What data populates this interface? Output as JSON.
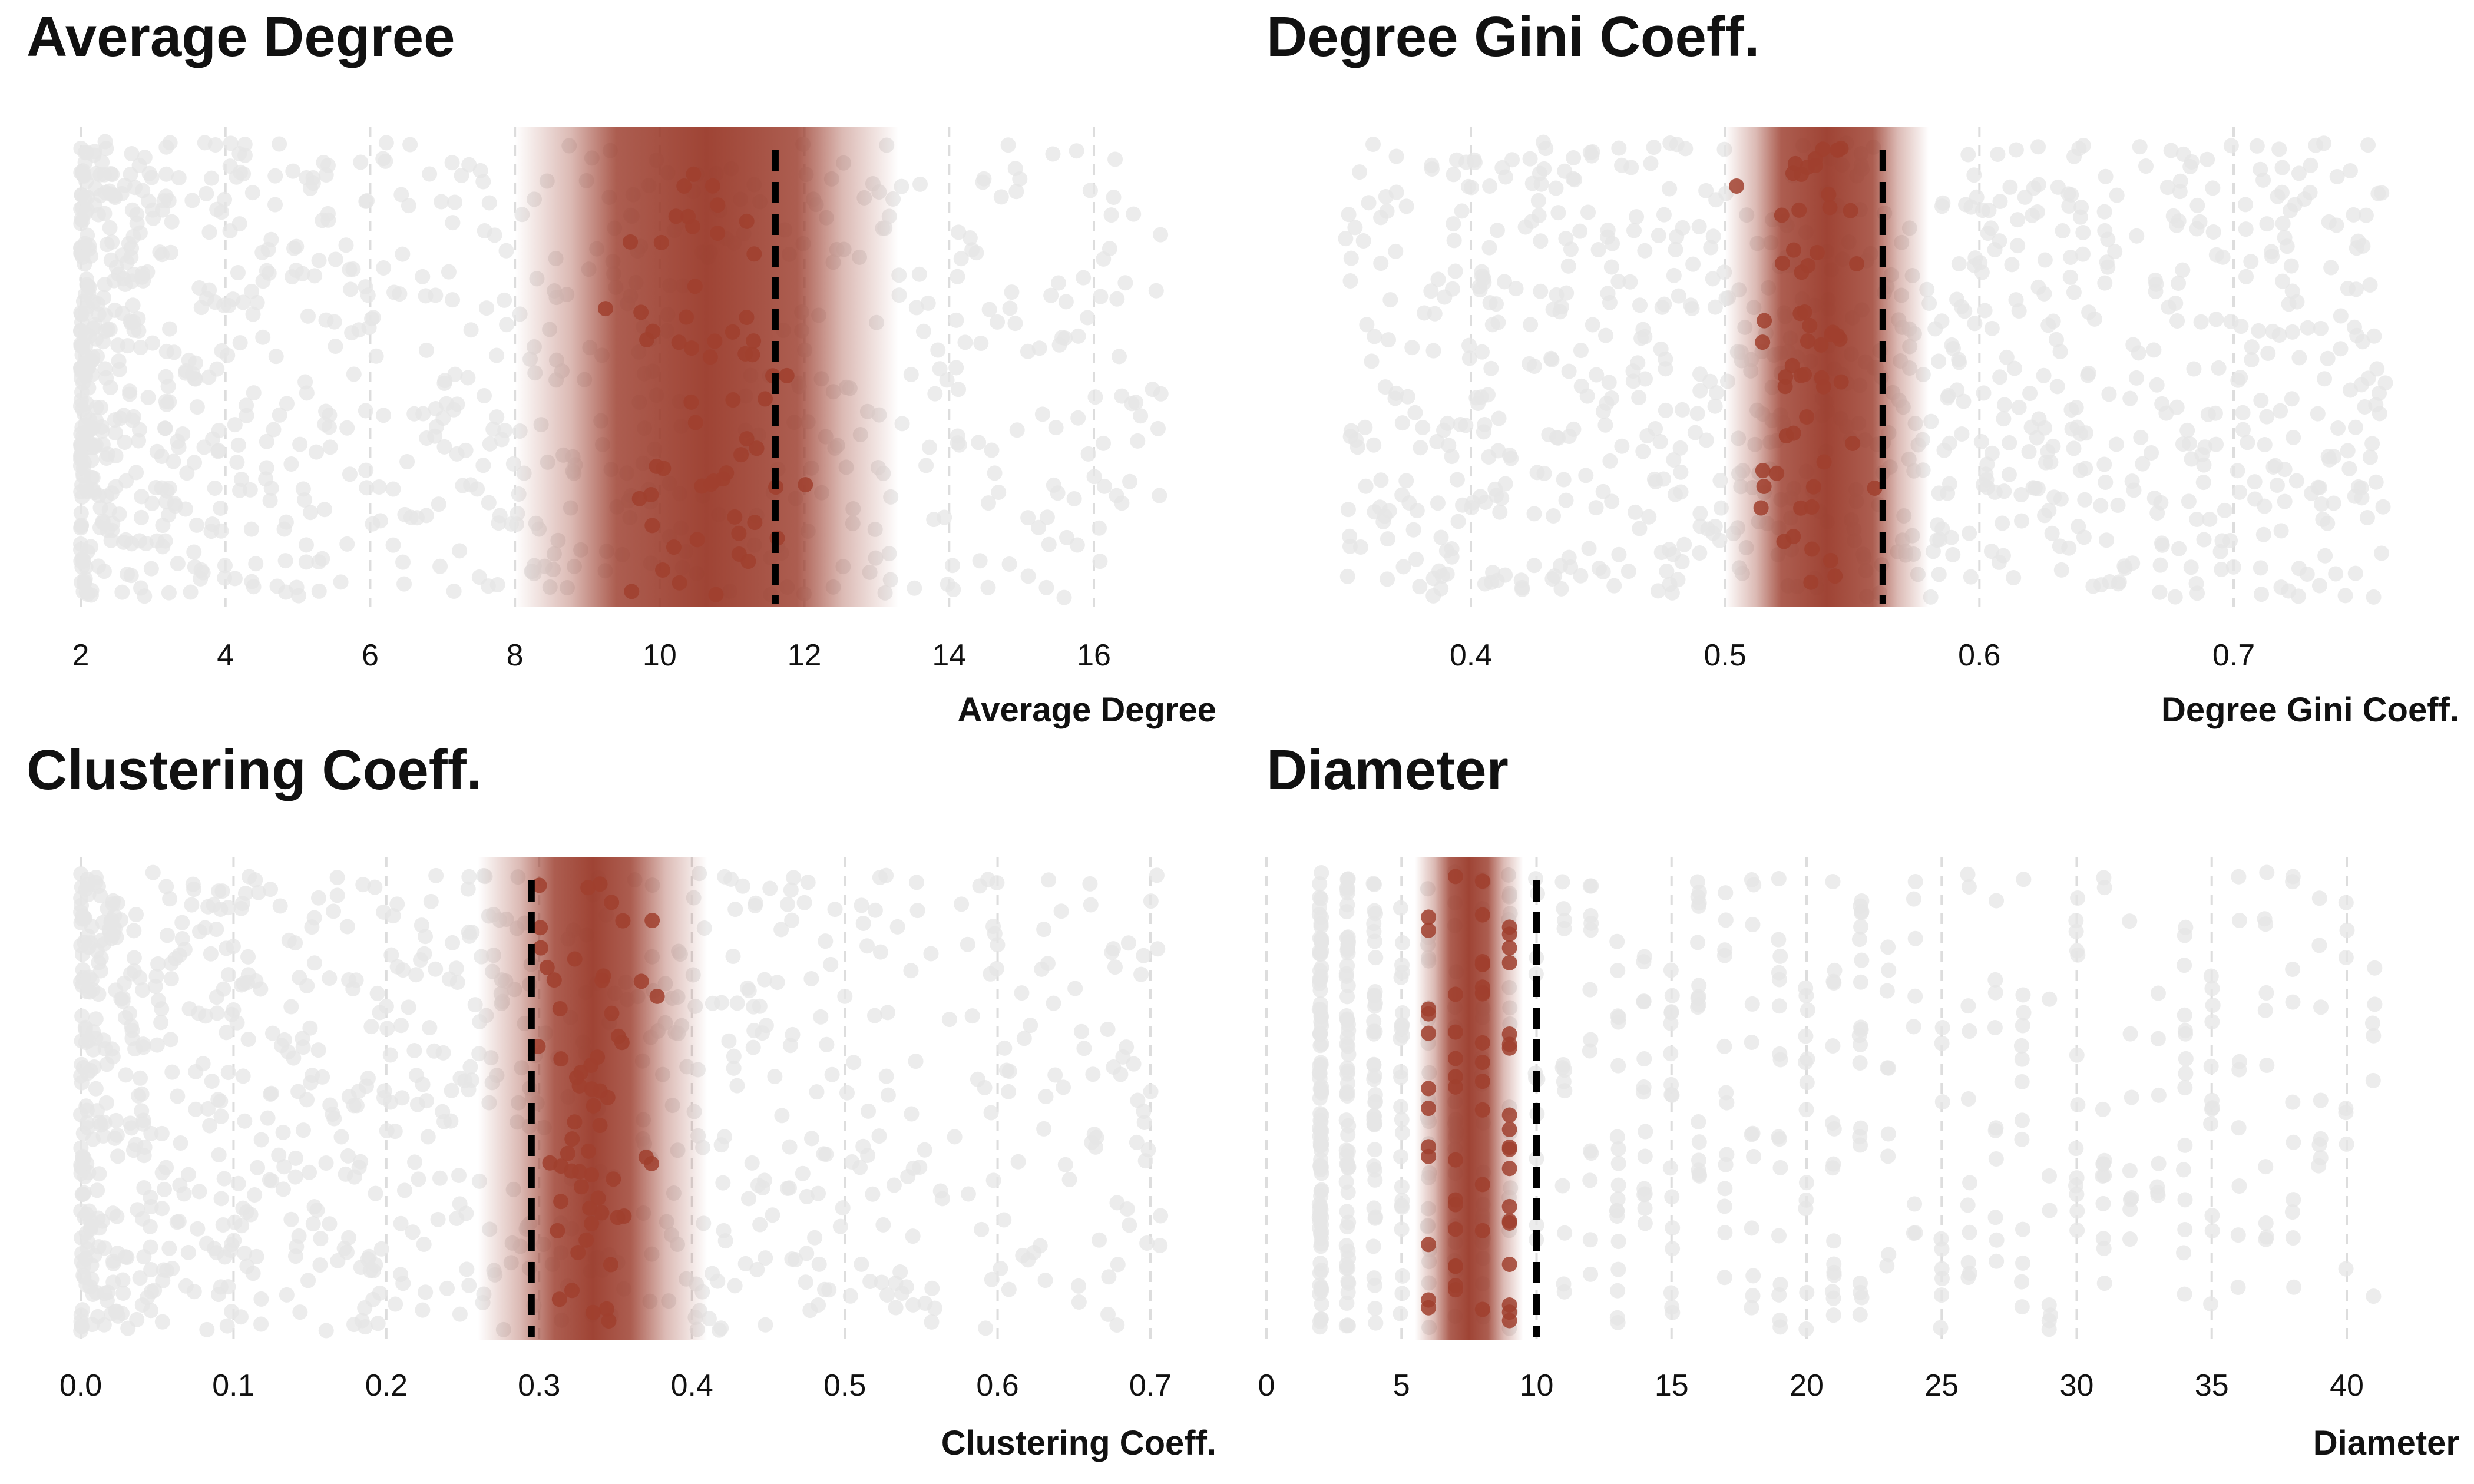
{
  "colors": {
    "accent": "#9a3a2a",
    "background_points": "#e6e6e6",
    "reference_line": "#000000",
    "grid": "#dddddd"
  },
  "chart_data": [
    {
      "type": "scatter",
      "title": "Average Degree",
      "xlabel": "Average Degree",
      "xlim": [
        1.5,
        17.0
      ],
      "xticks": [
        2,
        4,
        6,
        8,
        10,
        12,
        14,
        16
      ],
      "tick_labels": [
        "2",
        "4",
        "6",
        "8",
        "10",
        "12",
        "14",
        "16"
      ],
      "reference_value": 11.6,
      "band": {
        "low": 9.4,
        "high": 11.9,
        "fade": 1.4
      },
      "background_distribution": {
        "min": 2.0,
        "max": 17.0,
        "skew": 2.2,
        "count": 900
      },
      "highlighted_distribution": {
        "min": 8.6,
        "max": 12.8,
        "center": 10.6,
        "count": 60
      }
    },
    {
      "type": "scatter",
      "title": "Degree Gini Coeff.",
      "xlabel": "Degree Gini Coeff.",
      "xlim": [
        0.322,
        0.76
      ],
      "xticks": [
        0.4,
        0.5,
        0.6,
        0.7
      ],
      "tick_labels": [
        "0.4",
        "0.5",
        "0.6",
        "0.7"
      ],
      "reference_value": 0.562,
      "band": {
        "low": 0.522,
        "high": 0.558,
        "fade": 0.022
      },
      "background_distribution": {
        "min": 0.35,
        "max": 0.76,
        "skew": 1.0,
        "count": 900
      },
      "highlighted_distribution": {
        "min": 0.5,
        "max": 0.56,
        "center": 0.535,
        "count": 60
      }
    },
    {
      "type": "scatter",
      "title": "Clustering Coeff.",
      "xlabel": "Clustering Coeff.",
      "xlim": [
        -0.005,
        0.73
      ],
      "xticks": [
        0.0,
        0.1,
        0.2,
        0.3,
        0.4,
        0.5,
        0.6,
        0.7
      ],
      "tick_labels": [
        "0.0",
        "0.1",
        "0.2",
        "0.3",
        "0.4",
        "0.5",
        "0.6",
        "0.7"
      ],
      "reference_value": 0.295,
      "band": {
        "low": 0.31,
        "high": 0.36,
        "fade": 0.05
      },
      "background_distribution": {
        "min": 0.0,
        "max": 0.71,
        "skew": 2.0,
        "count": 900
      },
      "highlighted_distribution": {
        "min": 0.28,
        "max": 0.385,
        "center": 0.335,
        "count": 60
      }
    },
    {
      "type": "scatter",
      "title": "Diameter",
      "xlabel": "Diameter",
      "xlim": [
        0,
        44
      ],
      "xticks": [
        0,
        5,
        10,
        15,
        20,
        25,
        30,
        35,
        40
      ],
      "tick_labels": [
        "0",
        "5",
        "10",
        "15",
        "20",
        "25",
        "30",
        "35",
        "40"
      ],
      "reference_value": 10,
      "band": {
        "low": 6.8,
        "high": 8.2,
        "fade": 1.3
      },
      "background_distribution": {
        "min": 2,
        "max": 42,
        "skew": 2.4,
        "count": 700,
        "integer": true
      },
      "highlighted_distribution": {
        "values": [
          6,
          7,
          8,
          9
        ],
        "count": 60,
        "integer": true
      }
    }
  ]
}
